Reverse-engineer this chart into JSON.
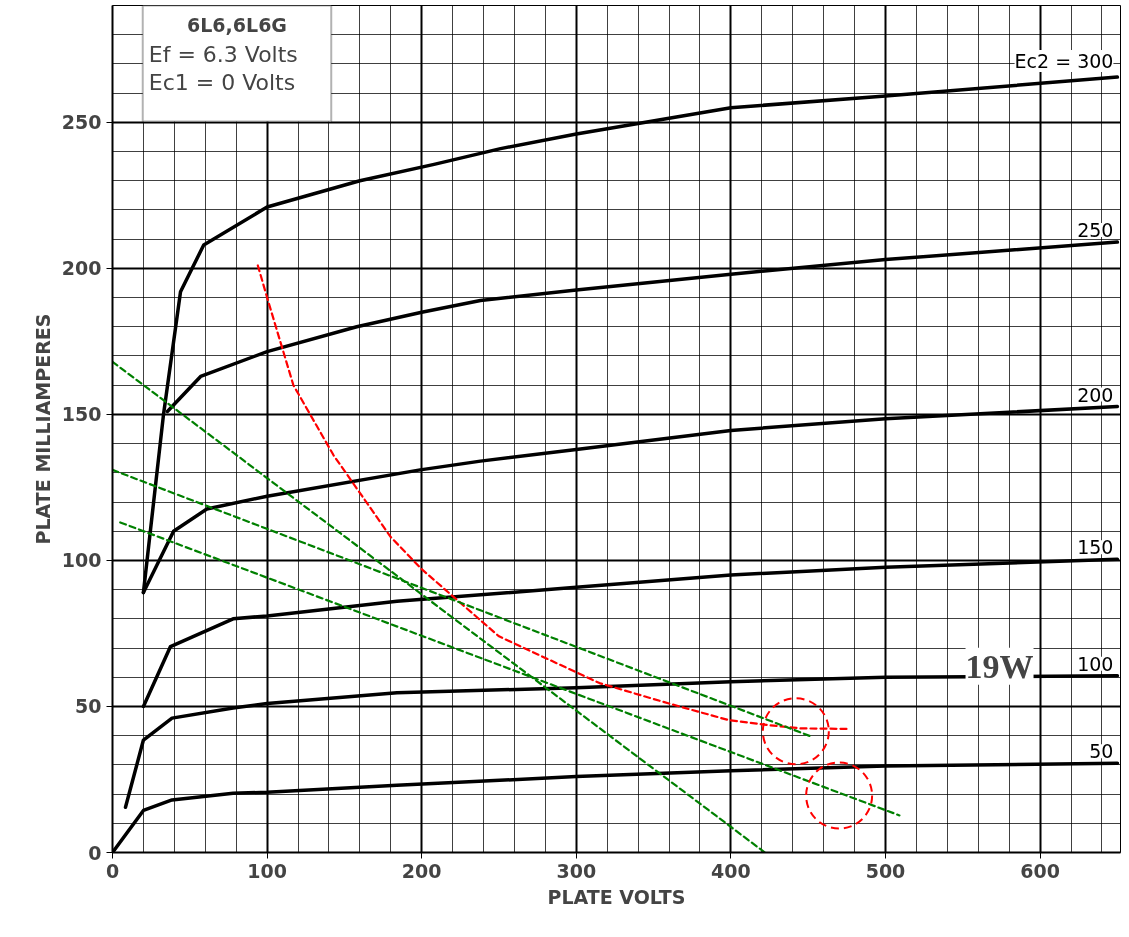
{
  "chart_data": {
    "type": "line",
    "title": "6L6,6L6G",
    "xlabel": "PLATE VOLTS",
    "ylabel": "PLATE MILLIAMPERES",
    "xlim": [
      0,
      652
    ],
    "ylim": [
      0,
      290
    ],
    "xticks": [
      0,
      100,
      200,
      300,
      400,
      500,
      600
    ],
    "yticks": [
      0,
      50,
      100,
      150,
      200,
      250
    ],
    "grid": true,
    "marker": "none",
    "annotations": [
      "Ef = 6.3 Volts",
      "Ec1 = 0 Volts",
      "19W"
    ],
    "series": [
      {
        "name": "Ec2 = 300",
        "color": "#000000",
        "line_style": "solid",
        "x": [
          20,
          33,
          44,
          59,
          100,
          160,
          208,
          251,
          300,
          400,
          500,
          650
        ],
        "values": [
          89,
          150,
          192,
          208,
          221,
          230,
          235.6,
          241,
          246,
          255,
          259,
          265.5
        ]
      },
      {
        "name": "250",
        "color": "#000000",
        "line_style": "solid",
        "x": [
          35.5,
          57,
          100,
          158,
          200,
          238,
          300,
          400,
          500,
          650
        ],
        "values": [
          151,
          163,
          171.5,
          180,
          185,
          189,
          192.6,
          198,
          203,
          209
        ]
      },
      {
        "name": "200",
        "color": "#000000",
        "line_style": "solid",
        "x": [
          20,
          39.5,
          61,
          100,
          199,
          238,
          300,
          400,
          500,
          650
        ],
        "values": [
          89,
          110,
          117.6,
          122,
          131,
          134,
          138,
          144.5,
          148.5,
          152.7
        ]
      },
      {
        "name": "150",
        "color": "#000000",
        "line_style": "solid",
        "x": [
          20,
          37.5,
          78,
          100,
          184,
          300,
          400,
          500,
          650
        ],
        "values": [
          50,
          70.5,
          80,
          81,
          86,
          90.8,
          95,
          97.7,
          100.4
        ]
      },
      {
        "name": "100",
        "color": "#000000",
        "line_style": "solid",
        "x": [
          8.4,
          20,
          38.5,
          78,
          100,
          184,
          300,
          400,
          500,
          650
        ],
        "values": [
          15.5,
          38.5,
          46,
          49.5,
          51,
          54.7,
          56.4,
          58.5,
          60,
          60.5
        ]
      },
      {
        "name": "50",
        "color": "#000000",
        "line_style": "solid",
        "x": [
          0,
          20,
          38.5,
          78,
          100,
          184,
          300,
          400,
          500,
          650
        ],
        "values": [
          0,
          14.4,
          18,
          20.3,
          20.6,
          23,
          26,
          28,
          29.6,
          30.6
        ]
      },
      {
        "color": "#ff0000",
        "line_style": "dashed",
        "x": [
          94,
          100,
          117,
          143,
          180,
          200,
          250,
          315,
          360,
          398,
          423,
          445,
          477
        ],
        "values": [
          201,
          190,
          160,
          136,
          108,
          97,
          74,
          58,
          51,
          45.4,
          43.7,
          42.5,
          42.3
        ]
      },
      {
        "color": "#008000",
        "line_style": "dashed",
        "x": [
          0,
          422
        ],
        "values": [
          168,
          0
        ]
      },
      {
        "color": "#008000",
        "line_style": "dashed",
        "x": [
          0,
          453
        ],
        "values": [
          131,
          39.5
        ]
      },
      {
        "color": "#008000",
        "line_style": "dashed",
        "x": [
          5,
          509
        ],
        "values": [
          113,
          12.7
        ]
      }
    ]
  }
}
